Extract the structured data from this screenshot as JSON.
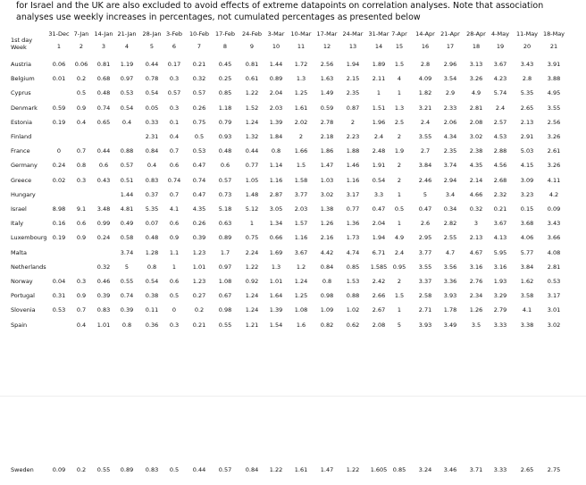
{
  "header": {
    "text": "for Israel and the UK are also excluded to avoid effects of extreme datapoints on correlation analyses. Note that association analyses use weekly increases in percentages, not cumulated percentages as presented below"
  },
  "table": {
    "row_header": [
      "1st day",
      "Week"
    ],
    "columns": [
      {
        "date": "31-Dec",
        "week": "1"
      },
      {
        "date": "7-Jan",
        "week": "2"
      },
      {
        "date": "14-Jan",
        "week": "3"
      },
      {
        "date": "21-Jan",
        "week": "4"
      },
      {
        "date": "28-Jan",
        "week": "5"
      },
      {
        "date": "3-Feb",
        "week": "6"
      },
      {
        "date": "10-Feb",
        "week": "7"
      },
      {
        "date": "17-Feb",
        "week": "8"
      },
      {
        "date": "24-Feb",
        "week": "9"
      },
      {
        "date": "3-Mar",
        "week": "10"
      },
      {
        "date": "10-Mar",
        "week": "11"
      },
      {
        "date": "17-Mar",
        "week": "12"
      },
      {
        "date": "24-Mar",
        "week": "13"
      },
      {
        "date": "31-Mar",
        "week": "14"
      },
      {
        "date": "7-Apr",
        "week": "15"
      },
      {
        "date": "14-Apr",
        "week": "16"
      },
      {
        "date": "21-Apr",
        "week": "17"
      },
      {
        "date": "28-Apr",
        "week": "18"
      },
      {
        "date": "4-May",
        "week": "19"
      },
      {
        "date": "11-May",
        "week": "20"
      },
      {
        "date": "18-May",
        "week": "21"
      }
    ],
    "rows": [
      {
        "country": "Austria",
        "values": [
          0.06,
          0.06,
          0.81,
          1.19,
          0.44,
          0.17,
          0.21,
          0.45,
          0.81,
          1.44,
          1.72,
          2.56,
          1.94,
          1.89,
          1.5,
          2.8,
          2.96,
          3.13,
          3.67,
          3.43,
          3.91
        ]
      },
      {
        "country": "Belgium",
        "values": [
          0.01,
          0.2,
          0.68,
          0.97,
          0.78,
          0.3,
          0.32,
          0.25,
          0.61,
          0.89,
          1.3,
          1.63,
          2.15,
          2.11,
          4,
          4.09,
          3.54,
          3.26,
          4.23,
          2.8,
          3.88
        ]
      },
      {
        "country": "Cyprus",
        "values": [
          null,
          0.5,
          0.48,
          0.53,
          0.54,
          0.57,
          0.57,
          0.85,
          1.22,
          2.04,
          1.25,
          1.49,
          2.35,
          1,
          1,
          1.82,
          2.9,
          4.9,
          5.74,
          5.35,
          4.95
        ]
      },
      {
        "country": "Denmark",
        "values": [
          0.59,
          0.9,
          0.74,
          0.54,
          0.05,
          0.3,
          0.26,
          1.18,
          1.52,
          2.03,
          1.61,
          0.59,
          0.87,
          1.51,
          1.3,
          3.21,
          2.33,
          2.81,
          2.4,
          2.65,
          3.55
        ]
      },
      {
        "country": "Estonia",
        "values": [
          0.19,
          0.4,
          0.65,
          0.4,
          0.33,
          0.1,
          0.75,
          0.79,
          1.24,
          1.39,
          2.02,
          2.78,
          2,
          1.96,
          2.5,
          2.4,
          2.06,
          2.08,
          2.57,
          2.13,
          2.56
        ]
      },
      {
        "country": "Finland",
        "values": [
          null,
          null,
          null,
          null,
          2.31,
          0.4,
          0.5,
          0.93,
          1.32,
          1.84,
          2,
          2.18,
          2.23,
          2.4,
          2,
          3.55,
          4.34,
          3.02,
          4.53,
          2.91,
          3.26
        ]
      },
      {
        "country": "France",
        "values": [
          0,
          0.7,
          0.44,
          0.88,
          0.84,
          0.7,
          0.53,
          0.48,
          0.44,
          0.8,
          1.66,
          1.86,
          1.88,
          2.48,
          1.9,
          2.7,
          2.35,
          2.38,
          2.88,
          5.03,
          2.61
        ]
      },
      {
        "country": "Germany",
        "values": [
          0.24,
          0.8,
          0.6,
          0.57,
          0.4,
          0.6,
          0.47,
          0.6,
          0.77,
          1.14,
          1.5,
          1.47,
          1.46,
          1.91,
          2,
          3.84,
          3.74,
          4.35,
          4.56,
          4.15,
          3.26
        ]
      },
      {
        "country": "Greece",
        "values": [
          0.02,
          0.3,
          0.43,
          0.51,
          0.83,
          0.74,
          0.74,
          0.57,
          1.05,
          1.16,
          1.58,
          1.03,
          1.16,
          0.54,
          2,
          2.46,
          2.94,
          2.14,
          2.68,
          3.09,
          4.11
        ]
      },
      {
        "country": "Hungary",
        "values": [
          null,
          null,
          null,
          1.44,
          0.37,
          0.7,
          0.47,
          0.73,
          1.48,
          2.87,
          3.77,
          3.02,
          3.17,
          3.3,
          1,
          5,
          3.4,
          4.66,
          2.32,
          3.23,
          4.2
        ]
      },
      {
        "country": "Israel",
        "values": [
          8.98,
          9.1,
          3.48,
          4.81,
          5.35,
          4.1,
          4.35,
          5.18,
          5.12,
          3.05,
          2.03,
          1.38,
          0.77,
          0.47,
          0.5,
          0.47,
          0.34,
          0.32,
          0.21,
          0.15,
          0.09
        ]
      },
      {
        "country": "Italy",
        "values": [
          0.16,
          0.6,
          0.99,
          0.49,
          0.07,
          0.6,
          0.26,
          0.63,
          1,
          1.34,
          1.57,
          1.26,
          1.36,
          2.04,
          1,
          2.6,
          2.82,
          3,
          3.67,
          3.68,
          3.43
        ]
      },
      {
        "country": "Luxembourg",
        "values": [
          0.19,
          0.9,
          0.24,
          0.58,
          0.48,
          0.9,
          0.39,
          0.89,
          0.75,
          0.66,
          1.16,
          2.16,
          1.73,
          1.94,
          4.9,
          2.95,
          2.55,
          2.13,
          4.13,
          4.06,
          3.66
        ]
      },
      {
        "country": "Malta",
        "values": [
          null,
          null,
          null,
          3.74,
          1.28,
          1.1,
          1.23,
          1.7,
          2.24,
          1.69,
          3.67,
          4.42,
          4.74,
          6.71,
          2.4,
          3.77,
          4.7,
          4.67,
          5.95,
          5.77,
          4.08
        ]
      },
      {
        "country": "Netherlands",
        "values": [
          null,
          null,
          0.32,
          5,
          0.8,
          1,
          1.01,
          0.97,
          1.22,
          1.3,
          1.2,
          0.84,
          0.85,
          1.585,
          0.95,
          3.55,
          3.56,
          3.16,
          3.16,
          3.84,
          2.81
        ]
      },
      {
        "country": "Norway",
        "values": [
          0.04,
          0.3,
          0.46,
          0.55,
          0.54,
          0.6,
          1.23,
          1.08,
          0.92,
          1.01,
          1.24,
          0.8,
          1.53,
          2.42,
          2,
          3.37,
          3.36,
          2.76,
          1.93,
          1.62,
          0.53
        ]
      },
      {
        "country": "Portugal",
        "values": [
          0.31,
          0.9,
          0.39,
          0.74,
          0.38,
          0.5,
          0.27,
          0.67,
          1.24,
          1.64,
          1.25,
          0.98,
          0.88,
          2.66,
          1.5,
          2.58,
          3.93,
          2.34,
          3.29,
          3.58,
          3.17
        ]
      },
      {
        "country": "Slovenia",
        "values": [
          0.53,
          0.7,
          0.83,
          0.39,
          0.11,
          0,
          0.2,
          0.98,
          1.24,
          1.39,
          1.08,
          1.09,
          1.02,
          2.67,
          1,
          2.71,
          1.78,
          1.26,
          2.79,
          4.1,
          3.01
        ]
      },
      {
        "country": "Spain",
        "values": [
          null,
          0.4,
          1.01,
          0.8,
          0.36,
          0.3,
          0.21,
          0.55,
          1.21,
          1.54,
          1.6,
          0.82,
          0.62,
          2.08,
          5,
          3.93,
          3.49,
          3.5,
          3.33,
          3.38,
          3.02
        ]
      },
      {
        "country": "Sweden",
        "values": [
          0.09,
          0.2,
          0.55,
          0.89,
          0.83,
          0.5,
          0.44,
          0.57,
          0.84,
          1.22,
          1.61,
          1.47,
          1.22,
          1.605,
          0.85,
          3.24,
          3.46,
          3.71,
          3.33,
          2.65,
          2.75
        ]
      }
    ]
  }
}
